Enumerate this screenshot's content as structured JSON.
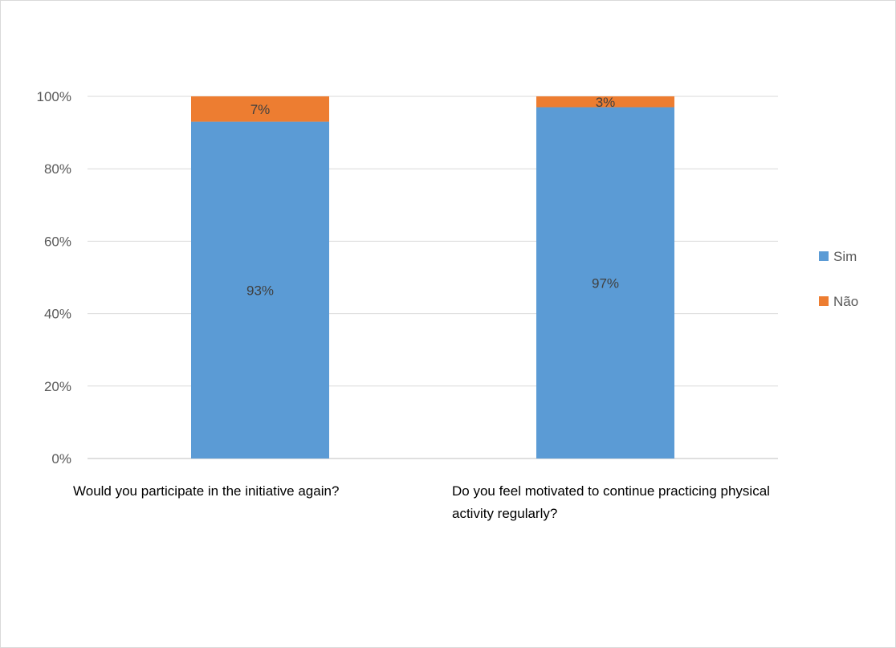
{
  "chart_data": {
    "type": "bar",
    "stacked": true,
    "percent": true,
    "categories": [
      "Would you participate in the initiative again?",
      "Do you feel motivated to continue practicing physical activity regularly?"
    ],
    "series": [
      {
        "name": "Sim",
        "values": [
          93,
          97
        ],
        "labels": [
          "93%",
          "97%"
        ],
        "color": "#5b9bd5"
      },
      {
        "name": "Não",
        "values": [
          7,
          3
        ],
        "labels": [
          "7%",
          "3%"
        ],
        "color": "#ed7d31"
      }
    ],
    "ylim": [
      0,
      100
    ],
    "yticks": [
      "0%",
      "20%",
      "40%",
      "60%",
      "80%",
      "100%"
    ],
    "grid": true,
    "legend": "right"
  }
}
